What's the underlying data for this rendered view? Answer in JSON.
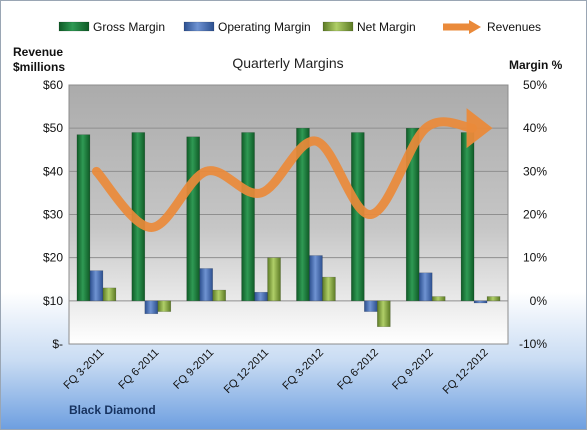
{
  "chart_data": {
    "type": "bar",
    "title": "Quarterly Margins",
    "categories": [
      "FQ 3-2011",
      "FQ 6-2011",
      "FQ 9-2011",
      "FQ 12-2011",
      "FQ 3-2012",
      "FQ 6-2012",
      "FQ 9-2012",
      "FQ 12-2012"
    ],
    "series": [
      {
        "name": "Gross Margin",
        "kind": "bar",
        "axis": "right",
        "color": "#1e7b3e",
        "values": [
          38.5,
          39,
          38,
          39,
          40,
          39,
          40,
          39
        ]
      },
      {
        "name": "Operating Margin",
        "kind": "bar",
        "axis": "right",
        "color": "#4a72b8",
        "values": [
          7,
          -3,
          7.5,
          2,
          10.5,
          -2.5,
          6.5,
          -0.5
        ]
      },
      {
        "name": "Net Margin",
        "kind": "bar",
        "axis": "right",
        "color": "#8cae44",
        "values": [
          3,
          -2.5,
          2.5,
          10,
          5.5,
          -6,
          1,
          1
        ]
      },
      {
        "name": "Revenues",
        "kind": "line",
        "axis": "left",
        "color": "#ea8a3a",
        "values": [
          40,
          27,
          40,
          35,
          47,
          30,
          50,
          50
        ]
      }
    ],
    "ylabel_left": "Revenue $millions",
    "ylabel_right": "Margin %",
    "ylim_left": [
      0,
      60
    ],
    "ylim_right": [
      -10,
      50
    ],
    "yticks_left": [
      "$-",
      "$10",
      "$20",
      "$30",
      "$40",
      "$50",
      "$60"
    ],
    "yticks_right": [
      "-10%",
      "0%",
      "10%",
      "20%",
      "30%",
      "40%",
      "50%"
    ],
    "legend_position": "top",
    "grid": true
  },
  "footer": "Black Diamond"
}
